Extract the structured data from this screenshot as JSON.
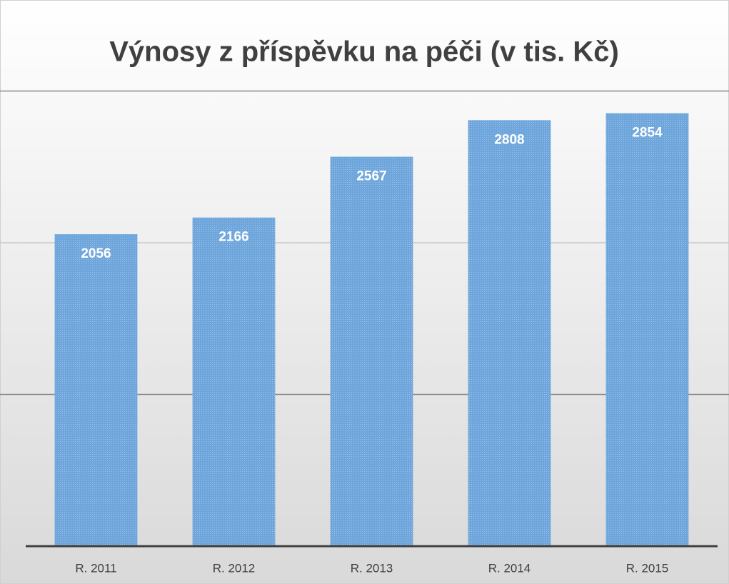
{
  "chart_data": {
    "type": "bar",
    "title": "Výnosy z příspěvku na péči (v tis. Kč)",
    "categories": [
      "R. 2011",
      "R. 2012",
      "R. 2013",
      "R. 2014",
      "R. 2015"
    ],
    "values": [
      2056,
      2166,
      2567,
      2808,
      2854
    ],
    "color": "#6ea6dc",
    "ylim": [
      0,
      3000
    ],
    "yticks": [
      0,
      1000,
      2000,
      3000
    ],
    "grid": true
  }
}
